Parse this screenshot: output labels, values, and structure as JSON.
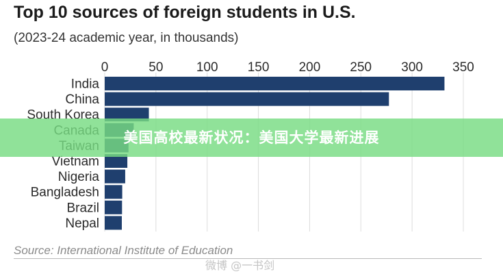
{
  "header": {
    "title": "Top 10 sources of foreign students in U.S.",
    "subtitle": "(2023-24 academic year, in thousands)"
  },
  "chart_data": {
    "type": "bar",
    "orientation": "horizontal",
    "title": "Top 10 sources of foreign students in U.S.",
    "subtitle": "(2023-24 academic year, in thousands)",
    "xlabel": "",
    "ylabel": "",
    "xlim": [
      0,
      350
    ],
    "x_ticks": [
      0,
      50,
      100,
      150,
      200,
      250,
      300,
      350
    ],
    "x_axis_position": "top",
    "grid": true,
    "categories": [
      "India",
      "China",
      "South Korea",
      "Canada",
      "Taiwan",
      "Vietnam",
      "Nigeria",
      "Bangladesh",
      "Brazil",
      "Nepal"
    ],
    "values": [
      331.6,
      277.4,
      43.1,
      28.3,
      23.2,
      22.1,
      20.0,
      17.1,
      16.9,
      16.7
    ],
    "bar_color": "#1f3f6e"
  },
  "footer": {
    "source": "Source: International Institute of Education"
  },
  "overlay": {
    "banner_text": "美国高校最新状况：美国大学最新进展",
    "banner_color": "#78dc82",
    "watermark_text": "微博 @一书剑"
  }
}
